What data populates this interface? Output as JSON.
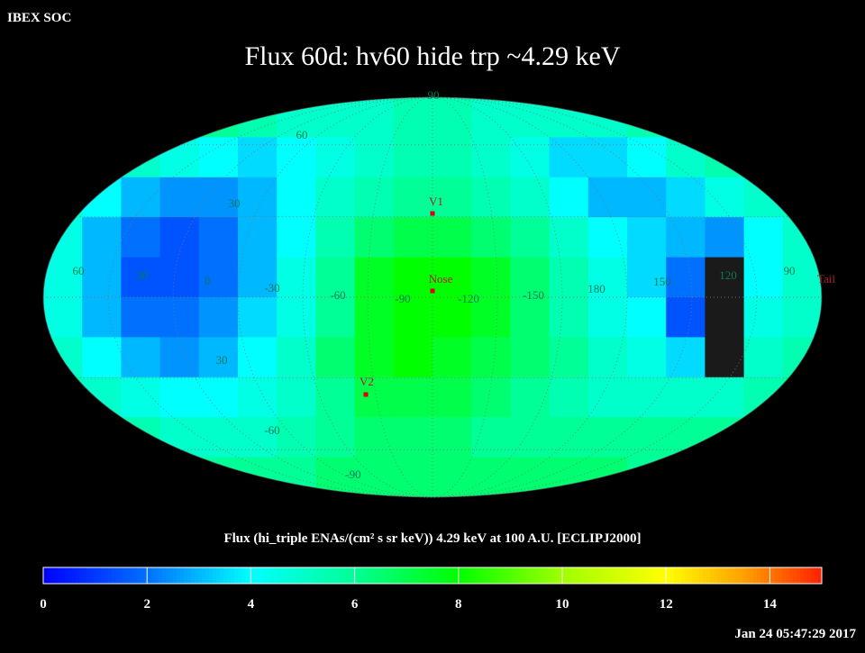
{
  "header": "IBEX SOC",
  "title": "Flux   60d: hv60 hide trp ~4.29 keV",
  "map": {
    "cells": [
      [
        6,
        6,
        6,
        6,
        6,
        5.5,
        5,
        5,
        5,
        5.5,
        5.5,
        5,
        5,
        5,
        5,
        5.5,
        6,
        6,
        6,
        6
      ],
      [
        6,
        5.5,
        5,
        4.5,
        4,
        3.5,
        4,
        4.5,
        5,
        5.5,
        5.5,
        5,
        4.5,
        3.5,
        3.5,
        4,
        5,
        5.5,
        6,
        6
      ],
      [
        5,
        4,
        3,
        2.5,
        2.5,
        3,
        4,
        5,
        5.5,
        6,
        6,
        5.5,
        5,
        4,
        3,
        3,
        3.5,
        4.5,
        5,
        5.5
      ],
      [
        4.5,
        3,
        2,
        1.5,
        2,
        3,
        4,
        5.5,
        6.5,
        7,
        7,
        6.5,
        6,
        5,
        4,
        3.5,
        3,
        2.5,
        4,
        5
      ],
      [
        4.5,
        3,
        1.5,
        1.5,
        2,
        3,
        4.5,
        6,
        7.5,
        8,
        8,
        7.5,
        6.5,
        5.5,
        4.5,
        3.5,
        2,
        null,
        4,
        5
      ],
      [
        4.5,
        3,
        2,
        2,
        2.5,
        3.5,
        4.5,
        6,
        7.5,
        8,
        8,
        7.5,
        6.5,
        5.5,
        4.5,
        4,
        1.5,
        null,
        4.5,
        5
      ],
      [
        5,
        4,
        3,
        2.5,
        3,
        4,
        5,
        6.5,
        7.5,
        8,
        7.5,
        7,
        6.5,
        6,
        5,
        4.5,
        3.5,
        null,
        5,
        5.5
      ],
      [
        5.5,
        5,
        4.5,
        4,
        4,
        4.5,
        5,
        6,
        7,
        7,
        7,
        6.5,
        6,
        5.5,
        5,
        5,
        5,
        5,
        5.5,
        6
      ],
      [
        6,
        6,
        5.5,
        5,
        5,
        5,
        5.5,
        6,
        6.5,
        6.5,
        6.5,
        6,
        6,
        6,
        6,
        6,
        6,
        6,
        6,
        6
      ],
      [
        6,
        6,
        6,
        6,
        6,
        6,
        6,
        6.5,
        6.5,
        6.5,
        6.5,
        6.5,
        6.5,
        6.5,
        6.5,
        6,
        6,
        6,
        6,
        6
      ]
    ],
    "grid_labels": [
      "90",
      "60",
      "30",
      "60",
      "30",
      "0",
      "-30",
      "-60",
      "-90",
      "-120",
      "-150",
      "180",
      "150",
      "120",
      "90",
      "30",
      "-60",
      "-90"
    ],
    "markers": [
      "V1",
      "Nose",
      "V2",
      "Tail"
    ]
  },
  "colorbar": {
    "title": "Flux (hi_triple ENAs/(cm² s sr keV))  4.29 keV at 100 A.U. [ECLIPJ2000]",
    "range": [
      0,
      15
    ],
    "ticks": [
      0,
      2,
      4,
      6,
      8,
      10,
      12,
      14
    ]
  },
  "timestamp": "Jan 24 05:47:29 2017"
}
